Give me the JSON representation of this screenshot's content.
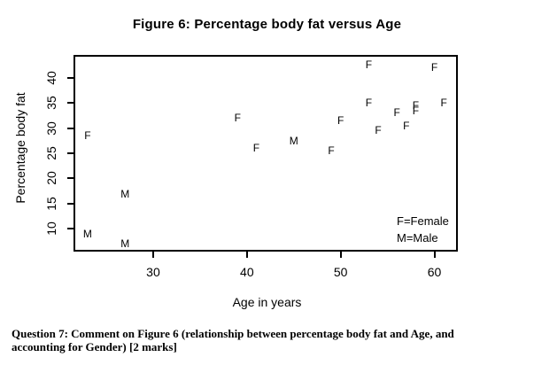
{
  "page": {
    "background": "#ffffff",
    "text_color": "#000000"
  },
  "chart_data": {
    "type": "scatter",
    "title": "Figure 6: Percentage body fat versus Age",
    "xlabel": "Age in years",
    "ylabel": "Percentage body fat",
    "xlim": [
      21.5,
      62.5
    ],
    "ylim": [
      5.5,
      44.5
    ],
    "x_ticks": [
      30,
      40,
      50,
      60
    ],
    "y_ticks": [
      10,
      15,
      20,
      25,
      30,
      35,
      40
    ],
    "grid": "off",
    "point_style": "letter glyphs (F = Female, M = Male)",
    "series": [
      {
        "name": "Female",
        "symbol": "F",
        "points": [
          [
            23,
            28.5
          ],
          [
            39,
            32
          ],
          [
            41,
            26
          ],
          [
            49,
            25.5
          ],
          [
            50,
            31.5
          ],
          [
            53,
            42.5
          ],
          [
            53,
            35
          ],
          [
            54,
            29.5
          ],
          [
            56,
            33
          ],
          [
            57,
            30.5
          ],
          [
            58,
            34.5
          ],
          [
            58,
            33.5
          ],
          [
            60,
            42
          ],
          [
            61,
            35
          ]
        ]
      },
      {
        "name": "Male",
        "symbol": "M",
        "points": [
          [
            23,
            9
          ],
          [
            27,
            17
          ],
          [
            27,
            7
          ],
          [
            45,
            27.5
          ]
        ]
      }
    ],
    "legend": {
      "position": "bottom-right-inside",
      "entries": [
        "F=Female",
        "M=Male"
      ]
    }
  },
  "question": {
    "label": "Question 7:",
    "line1_rest": "Comment on Figure 6 (relationship between percentage body fat and Age, and",
    "line2": "accounting for Gender) [2 marks]"
  }
}
